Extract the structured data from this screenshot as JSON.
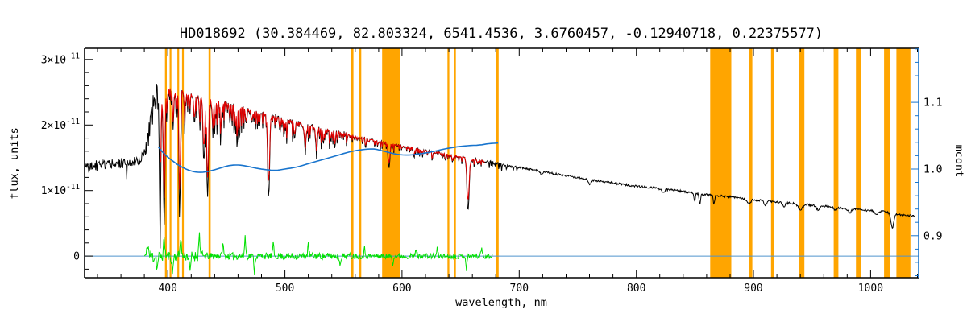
{
  "chart_data": {
    "type": "line",
    "title": "HD018692  (30.384469, 82.803324, 6541.4536, 3.6760457, -0.12940718, 0.22375577)",
    "xlabel": "wavelength, nm",
    "ylabel": "flux, units",
    "ylabel_right": "mcont",
    "xlim": [
      329,
      1041
    ],
    "ylim_left": [
      -0.33,
      3.17
    ],
    "ylim_right": [
      0.837,
      1.181
    ],
    "flux_unit_scale": "1e-11",
    "x_axis": {
      "minor_step": 20,
      "majors": [
        {
          "v": 400,
          "t": "400"
        },
        {
          "v": 500,
          "t": "500"
        },
        {
          "v": 600,
          "t": "600"
        },
        {
          "v": 700,
          "t": "700"
        },
        {
          "v": 800,
          "t": "800"
        },
        {
          "v": 900,
          "t": "900"
        },
        {
          "v": 1000,
          "t": "1000"
        }
      ]
    },
    "y_axis_left": {
      "minor_step": 0.2,
      "majors": [
        {
          "v": 0,
          "t": "0"
        },
        {
          "v": 1,
          "t": "1×10^-11"
        },
        {
          "v": 2,
          "t": "2×10^-11"
        },
        {
          "v": 3,
          "t": "3×10^-11"
        }
      ]
    },
    "y_axis_right": {
      "minor_step": 0.02,
      "majors": [
        {
          "v": 0.9,
          "t": "0.9"
        },
        {
          "v": 1.0,
          "t": "1.0"
        },
        {
          "v": 1.1,
          "t": "1.1"
        }
      ]
    },
    "colors": {
      "spectrum": "#000000",
      "fit": "#e60000",
      "mcont": "#1874CD",
      "residual": "#00e000",
      "band": "#FFA500",
      "zero_line": "#4f94cd",
      "axis": "#000000"
    },
    "masked_bands": [
      [
        397.6,
        399.2
      ],
      [
        401.6,
        403.1
      ],
      [
        408.2,
        409.7
      ],
      [
        412.2,
        413.7
      ],
      [
        434.8,
        436.6
      ],
      [
        556.5,
        558.5
      ],
      [
        563.2,
        565.2
      ],
      [
        583,
        598.5
      ],
      [
        638.8,
        640.4
      ],
      [
        644.2,
        645.9
      ],
      [
        680.3,
        682.4
      ],
      [
        863,
        881
      ],
      [
        896,
        899
      ],
      [
        915,
        917.5
      ],
      [
        939,
        943.5
      ],
      [
        968.5,
        972.5
      ],
      [
        987.5,
        992
      ],
      [
        1011.5,
        1016.5
      ],
      [
        1022,
        1034
      ]
    ],
    "series": {
      "spectrum": {
        "name": "observed spectrum",
        "color": "#000000",
        "range": [
          329,
          1038
        ],
        "continuum": [
          [
            329,
            1.36
          ],
          [
            336,
            1.38
          ],
          [
            344,
            1.39
          ],
          [
            352,
            1.39
          ],
          [
            360,
            1.41
          ],
          [
            368,
            1.43
          ],
          [
            374,
            1.46
          ],
          [
            379,
            1.51
          ],
          [
            382,
            1.62
          ],
          [
            385,
            2.0
          ],
          [
            388,
            2.32
          ],
          [
            391,
            2.5
          ],
          [
            394,
            2.54
          ],
          [
            398,
            2.53
          ],
          [
            402,
            2.58
          ],
          [
            406,
            2.53
          ],
          [
            410,
            2.56
          ],
          [
            415,
            2.5
          ],
          [
            420,
            2.47
          ],
          [
            426,
            2.45
          ],
          [
            432,
            2.44
          ],
          [
            438,
            2.4
          ],
          [
            445,
            2.36
          ],
          [
            452,
            2.32
          ],
          [
            460,
            2.28
          ],
          [
            468,
            2.24
          ],
          [
            476,
            2.2
          ],
          [
            484,
            2.16
          ],
          [
            492,
            2.12
          ],
          [
            500,
            2.08
          ],
          [
            510,
            2.04
          ],
          [
            520,
            1.99
          ],
          [
            530,
            1.95
          ],
          [
            540,
            1.91
          ],
          [
            550,
            1.87
          ],
          [
            560,
            1.83
          ],
          [
            570,
            1.79
          ],
          [
            580,
            1.75
          ],
          [
            590,
            1.72
          ],
          [
            600,
            1.68
          ],
          [
            610,
            1.65
          ],
          [
            620,
            1.61
          ],
          [
            630,
            1.58
          ],
          [
            640,
            1.55
          ],
          [
            650,
            1.52
          ],
          [
            660,
            1.48
          ],
          [
            670,
            1.45
          ],
          [
            680,
            1.42
          ],
          [
            690,
            1.38
          ],
          [
            702,
            1.35
          ],
          [
            714,
            1.31
          ],
          [
            726,
            1.27
          ],
          [
            738,
            1.23
          ],
          [
            750,
            1.2
          ],
          [
            762,
            1.16
          ],
          [
            774,
            1.13
          ],
          [
            786,
            1.1
          ],
          [
            798,
            1.07
          ],
          [
            810,
            1.05
          ],
          [
            822,
            1.02
          ],
          [
            834,
            1.0
          ],
          [
            846,
            0.97
          ],
          [
            858,
            0.94
          ],
          [
            870,
            0.92
          ],
          [
            882,
            0.9
          ],
          [
            894,
            0.87
          ],
          [
            906,
            0.85
          ],
          [
            918,
            0.83
          ],
          [
            930,
            0.81
          ],
          [
            942,
            0.79
          ],
          [
            954,
            0.77
          ],
          [
            966,
            0.75
          ],
          [
            978,
            0.73
          ],
          [
            990,
            0.71
          ],
          [
            1002,
            0.69
          ],
          [
            1010,
            0.68
          ],
          [
            1016,
            0.66
          ],
          [
            1022,
            0.64
          ],
          [
            1030,
            0.62
          ],
          [
            1038,
            0.61
          ]
        ],
        "lines": [
          [
            393.4,
            0.7,
            2.05
          ],
          [
            396.9,
            0.7,
            2.0
          ],
          [
            404.6,
            0.5,
            0.6
          ],
          [
            410.2,
            0.7,
            1.75
          ],
          [
            414.4,
            0.5,
            0.4
          ],
          [
            422.7,
            0.6,
            0.45
          ],
          [
            427.2,
            0.5,
            0.35
          ],
          [
            430.8,
            0.9,
            0.55
          ],
          [
            434.0,
            0.7,
            1.55
          ],
          [
            438.4,
            0.6,
            0.4
          ],
          [
            440.5,
            0.5,
            0.3
          ],
          [
            445.5,
            0.5,
            0.3
          ],
          [
            453.0,
            0.4,
            0.22
          ],
          [
            458.7,
            0.4,
            0.2
          ],
          [
            466.8,
            0.5,
            0.22
          ],
          [
            472.0,
            0.4,
            0.18
          ],
          [
            486.1,
            0.8,
            1.27
          ],
          [
            495.8,
            0.5,
            0.2
          ],
          [
            501.6,
            0.4,
            0.18
          ],
          [
            517.3,
            0.9,
            0.3
          ],
          [
            527.0,
            0.6,
            0.32
          ],
          [
            532.8,
            0.5,
            0.2
          ],
          [
            543.0,
            0.4,
            0.15
          ],
          [
            553.0,
            0.4,
            0.12
          ],
          [
            588.9,
            0.7,
            0.38
          ],
          [
            610.3,
            0.4,
            0.12
          ],
          [
            626.0,
            0.4,
            0.1
          ],
          [
            643.0,
            0.4,
            0.12
          ],
          [
            656.3,
            0.9,
            0.8
          ],
          [
            719.0,
            1.0,
            0.05
          ],
          [
            760.0,
            1.2,
            0.07
          ],
          [
            823.0,
            1.0,
            0.05
          ],
          [
            849.8,
            0.6,
            0.12
          ],
          [
            854.2,
            0.6,
            0.16
          ],
          [
            866.2,
            0.6,
            0.13
          ],
          [
            896.0,
            1.5,
            0.07
          ],
          [
            910.0,
            1.2,
            0.06
          ],
          [
            926.0,
            1.2,
            0.06
          ],
          [
            940.0,
            2.0,
            0.08
          ],
          [
            955.0,
            1.5,
            0.06
          ],
          [
            970.0,
            1.2,
            0.05
          ],
          [
            982.0,
            1.5,
            0.06
          ],
          [
            1005.0,
            1.2,
            0.05
          ],
          [
            1018.5,
            1.2,
            0.22
          ]
        ],
        "noise": [
          [
            329,
            381,
            0.085
          ],
          [
            381,
            384.5,
            0.18
          ],
          [
            384.5,
            396,
            0.24
          ],
          [
            396,
            470,
            0.05
          ],
          [
            470,
            560,
            0.035
          ],
          [
            560,
            690,
            0.022
          ],
          [
            690,
            1040,
            0.016
          ]
        ],
        "noise_spikes": {
          "range": [
            331,
            381
          ],
          "prob": 0.06,
          "amp": 0.27
        },
        "forest": [
          {
            "range": [
              393.5,
              470
            ],
            "amp": 0.5
          },
          {
            "range": [
              470,
              545
            ],
            "amp": 0.32
          },
          {
            "range": [
              545,
              620
            ],
            "amp": 0.14
          },
          {
            "range": [
              620,
              700
            ],
            "amp": 0.1
          }
        ]
      },
      "fit": {
        "name": "fitted spectrum",
        "color": "#e60000",
        "range": [
          394,
          670.5
        ],
        "line_scale": 0.8,
        "forest_scale": 0.72,
        "noise_scale": 0.5
      },
      "mcont": {
        "name": "continuum ratio",
        "color": "#1874CD",
        "axis": "right",
        "points": [
          [
            392,
            1.033
          ],
          [
            398,
            1.021
          ],
          [
            405,
            1.011
          ],
          [
            412,
            1.003
          ],
          [
            420,
            0.997
          ],
          [
            428,
            0.995
          ],
          [
            436,
            0.997
          ],
          [
            444,
            1.001
          ],
          [
            452,
            1.005
          ],
          [
            460,
            1.006
          ],
          [
            468,
            1.004
          ],
          [
            476,
            1.001
          ],
          [
            484,
            0.999
          ],
          [
            492,
            0.998
          ],
          [
            500,
            1.0
          ],
          [
            510,
            1.003
          ],
          [
            520,
            1.008
          ],
          [
            532,
            1.014
          ],
          [
            544,
            1.02
          ],
          [
            556,
            1.026
          ],
          [
            566,
            1.029
          ],
          [
            576,
            1.03
          ],
          [
            586,
            1.026
          ],
          [
            596,
            1.022
          ],
          [
            606,
            1.021
          ],
          [
            616,
            1.023
          ],
          [
            626,
            1.026
          ],
          [
            636,
            1.03
          ],
          [
            646,
            1.033
          ],
          [
            656,
            1.035
          ],
          [
            666,
            1.036
          ],
          [
            674,
            1.038
          ],
          [
            682,
            1.039
          ]
        ]
      },
      "residual": {
        "name": "fit residual",
        "color": "#00e000",
        "range": [
          380,
          677
        ],
        "segments": [
          [
            380,
            392,
            0.12
          ],
          [
            392,
            430,
            0.08
          ],
          [
            430,
            470,
            0.055
          ],
          [
            470,
            560,
            0.05
          ],
          [
            560,
            677,
            0.04
          ]
        ],
        "spikes": [
          [
            383,
            0.22
          ],
          [
            391,
            -0.2
          ],
          [
            397,
            0.3
          ],
          [
            404,
            -0.27
          ],
          [
            411,
            0.32
          ],
          [
            419,
            -0.28
          ],
          [
            427,
            0.36
          ],
          [
            447,
            0.2
          ],
          [
            466,
            0.3
          ],
          [
            474,
            -0.24
          ],
          [
            490,
            0.18
          ],
          [
            520,
            0.17
          ],
          [
            547,
            -0.14
          ],
          [
            568,
            0.12
          ],
          [
            592,
            -0.12
          ],
          [
            612,
            0.12
          ],
          [
            630,
            0.11
          ],
          [
            655,
            -0.2
          ],
          [
            668,
            0.14
          ]
        ]
      },
      "zero_line": {
        "name": "zero reference",
        "color": "#4f94cd",
        "y": 0
      }
    }
  }
}
